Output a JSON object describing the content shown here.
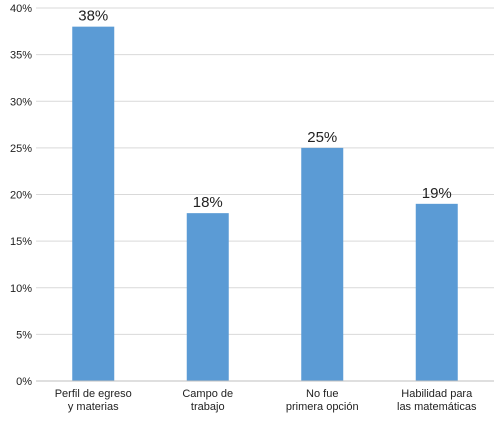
{
  "chart_data": {
    "type": "bar",
    "categories": [
      [
        "Perfil de egreso",
        "y materias"
      ],
      [
        "Campo de",
        "trabajo"
      ],
      [
        "No fue",
        "primera opción"
      ],
      [
        "Habilidad para",
        "las matemáticas"
      ]
    ],
    "values": [
      38,
      18,
      25,
      19
    ],
    "data_labels": [
      "38%",
      "18%",
      "25%",
      "19%"
    ],
    "y_ticks": [
      "0%",
      "5%",
      "10%",
      "15%",
      "20%",
      "25%",
      "30%",
      "35%",
      "40%"
    ],
    "ylim": [
      0,
      40
    ],
    "grid": true,
    "legend": "none",
    "title": "",
    "xlabel": "",
    "ylabel": "",
    "colors": {
      "bar": "#5b9bd5",
      "grid": "#d9d9d9",
      "axis": "#bfbfbf"
    }
  }
}
